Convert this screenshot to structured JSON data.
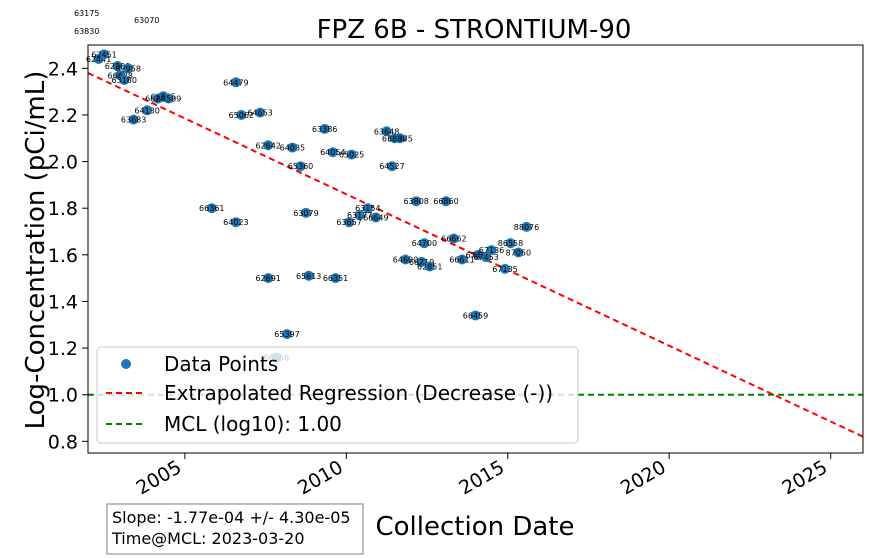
{
  "chart_data": {
    "type": "scatter",
    "title": "FPZ  6B - STRONTIUM-90",
    "xlabel": "Collection Date",
    "ylabel": "Log-Concentration (pCi/mL)",
    "xlim": [
      "2002-01-01",
      "2026-01-01"
    ],
    "ylim": [
      0.75,
      2.5
    ],
    "xticks": [
      {
        "date": "2005-01-01",
        "label": "2005"
      },
      {
        "date": "2010-01-01",
        "label": "2010"
      },
      {
        "date": "2015-01-01",
        "label": "2015"
      },
      {
        "date": "2020-01-01",
        "label": "2020"
      },
      {
        "date": "2025-01-01",
        "label": "2025"
      }
    ],
    "yticks": [
      {
        "value": 0.8,
        "label": "0.8"
      },
      {
        "value": 1.0,
        "label": "1.0"
      },
      {
        "value": 1.2,
        "label": "1.2"
      },
      {
        "value": 1.4,
        "label": "1.4"
      },
      {
        "value": 1.6,
        "label": "1.6"
      },
      {
        "value": 1.8,
        "label": "1.8"
      },
      {
        "value": 2.0,
        "label": "2.0"
      },
      {
        "value": 2.2,
        "label": "2.2"
      },
      {
        "value": 2.4,
        "label": "2.4"
      }
    ],
    "grid": false,
    "legend_position": "lower-left",
    "colors": {
      "points": "#1f77b4",
      "regression": "#ff0000",
      "mcl": "#008000"
    },
    "series": [
      {
        "name": "Data Points",
        "points": [
          {
            "x": "2002-05-01",
            "y": 2.44,
            "label": "62441"
          },
          {
            "x": "2002-07-01",
            "y": 2.46,
            "label": "62451"
          },
          {
            "x": "2002-12-01",
            "y": 2.41,
            "label": "62808"
          },
          {
            "x": "2003-04-01",
            "y": 2.4,
            "label": "62958"
          },
          {
            "x": "2003-01-01",
            "y": 2.37,
            "label": "66638"
          },
          {
            "x": "2003-02-15",
            "y": 2.35,
            "label": "63180"
          },
          {
            "x": "2004-05-01",
            "y": 2.28,
            "label": "64865"
          },
          {
            "x": "2004-03-01",
            "y": 2.27,
            "label": "66289"
          },
          {
            "x": "2004-07-01",
            "y": 2.27,
            "label": "63509"
          },
          {
            "x": "2003-11-01",
            "y": 2.22,
            "label": "64130"
          },
          {
            "x": "2003-06-01",
            "y": 2.18,
            "label": "63683"
          },
          {
            "x": "2006-08-01",
            "y": 2.34,
            "label": "64479"
          },
          {
            "x": "2006-10-01",
            "y": 2.2,
            "label": "65062"
          },
          {
            "x": "2007-05-01",
            "y": 2.21,
            "label": "64653"
          },
          {
            "x": "2007-08-01",
            "y": 2.07,
            "label": "62642"
          },
          {
            "x": "2008-05-01",
            "y": 2.06,
            "label": "64035"
          },
          {
            "x": "2008-08-01",
            "y": 1.98,
            "label": "65360"
          },
          {
            "x": "2009-05-01",
            "y": 2.14,
            "label": "63386"
          },
          {
            "x": "2009-08-01",
            "y": 2.04,
            "label": "64054"
          },
          {
            "x": "2010-03-01",
            "y": 2.03,
            "label": "65025"
          },
          {
            "x": "2011-04-01",
            "y": 2.13,
            "label": "63648"
          },
          {
            "x": "2011-09-01",
            "y": 2.1,
            "label": "63875"
          },
          {
            "x": "2011-07-01",
            "y": 2.1,
            "label": "63880"
          },
          {
            "x": "2011-06-01",
            "y": 1.98,
            "label": "64527"
          },
          {
            "x": "2005-11-01",
            "y": 1.8,
            "label": "66361"
          },
          {
            "x": "2006-08-01",
            "y": 1.74,
            "label": "64023"
          },
          {
            "x": "2008-10-01",
            "y": 1.78,
            "label": "63079"
          },
          {
            "x": "2010-09-01",
            "y": 1.8,
            "label": "63154"
          },
          {
            "x": "2010-06-01",
            "y": 1.77,
            "label": "63177"
          },
          {
            "x": "2010-12-01",
            "y": 1.76,
            "label": "66649"
          },
          {
            "x": "2010-02-01",
            "y": 1.74,
            "label": "63657"
          },
          {
            "x": "2012-03-01",
            "y": 1.83,
            "label": "63808"
          },
          {
            "x": "2013-02-01",
            "y": 1.83,
            "label": "66860"
          },
          {
            "x": "2012-06-01",
            "y": 1.65,
            "label": "64700"
          },
          {
            "x": "2013-05-01",
            "y": 1.67,
            "label": "66662"
          },
          {
            "x": "2011-11-01",
            "y": 1.58,
            "label": "64690"
          },
          {
            "x": "2012-05-01",
            "y": 1.57,
            "label": "66719"
          },
          {
            "x": "2012-08-01",
            "y": 1.55,
            "label": "62851"
          },
          {
            "x": "2013-08-01",
            "y": 1.58,
            "label": "66611"
          },
          {
            "x": "2014-02-01",
            "y": 1.6,
            "label": "67445"
          },
          {
            "x": "2014-05-01",
            "y": 1.59,
            "label": "67453"
          },
          {
            "x": "2014-07-01",
            "y": 1.62,
            "label": "67136"
          },
          {
            "x": "2015-02-01",
            "y": 1.65,
            "label": "86558"
          },
          {
            "x": "2015-05-01",
            "y": 1.61,
            "label": "87050"
          },
          {
            "x": "2015-08-01",
            "y": 1.72,
            "label": "88076"
          },
          {
            "x": "2014-12-01",
            "y": 1.54,
            "label": "67135"
          },
          {
            "x": "2014-01-01",
            "y": 1.34,
            "label": "66459"
          },
          {
            "x": "2007-08-01",
            "y": 1.5,
            "label": "62691"
          },
          {
            "x": "2008-11-01",
            "y": 1.51,
            "label": "65613"
          },
          {
            "x": "2009-09-01",
            "y": 1.5,
            "label": "66351"
          },
          {
            "x": "2008-03-01",
            "y": 1.26,
            "label": "65397"
          },
          {
            "x": "2007-11-01",
            "y": 1.16,
            "label": "66056"
          }
        ]
      },
      {
        "name": "Extrapolated Regression (Decrease (-))",
        "line": {
          "x": [
            "2002-01-01",
            "2026-01-01"
          ],
          "y": [
            2.38,
            0.82
          ]
        }
      },
      {
        "name": "MCL (log10): 1.00",
        "hline": 1.0
      }
    ],
    "outside_labels": [
      {
        "text": "63175"
      },
      {
        "text": "63070"
      },
      {
        "text": "63830"
      }
    ],
    "stats": {
      "slope": "Slope: -1.77e-04 +/- 4.30e-05",
      "time_at_mcl": "Time@MCL: 2023-03-20"
    }
  }
}
